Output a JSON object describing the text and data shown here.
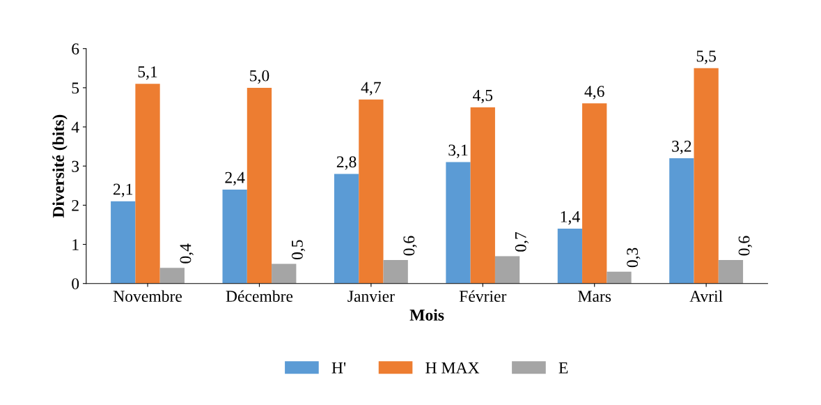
{
  "chart_data": {
    "type": "bar",
    "xlabel": "Mois",
    "ylabel": "Diversité (bits)",
    "categories": [
      "Novembre",
      "Décembre",
      "Janvier",
      "Février",
      "Mars",
      "Avril"
    ],
    "series": [
      {
        "name": "H'",
        "color": "#5b9bd5",
        "values": [
          2.1,
          2.4,
          2.8,
          3.1,
          1.4,
          3.2
        ],
        "value_labels": [
          "2,1",
          "2,4",
          "2,8",
          "3,1",
          "1,4",
          "3,2"
        ]
      },
      {
        "name": "H MAX",
        "color": "#ed7d31",
        "values": [
          5.1,
          5.0,
          4.7,
          4.5,
          4.6,
          5.5
        ],
        "value_labels": [
          "5,1",
          "5,0",
          "4,7",
          "4,5",
          "4,6",
          "5,5"
        ]
      },
      {
        "name": "E",
        "color": "#a5a5a5",
        "values": [
          0.4,
          0.5,
          0.6,
          0.7,
          0.3,
          0.6
        ],
        "value_labels": [
          "0,4",
          "0,5",
          "0,6",
          "0,7",
          "0,3",
          "0,6"
        ]
      }
    ],
    "ylim": [
      0,
      6
    ],
    "yticks": [
      0,
      1,
      2,
      3,
      4,
      5,
      6
    ],
    "grid": false,
    "legend": "bottom"
  }
}
